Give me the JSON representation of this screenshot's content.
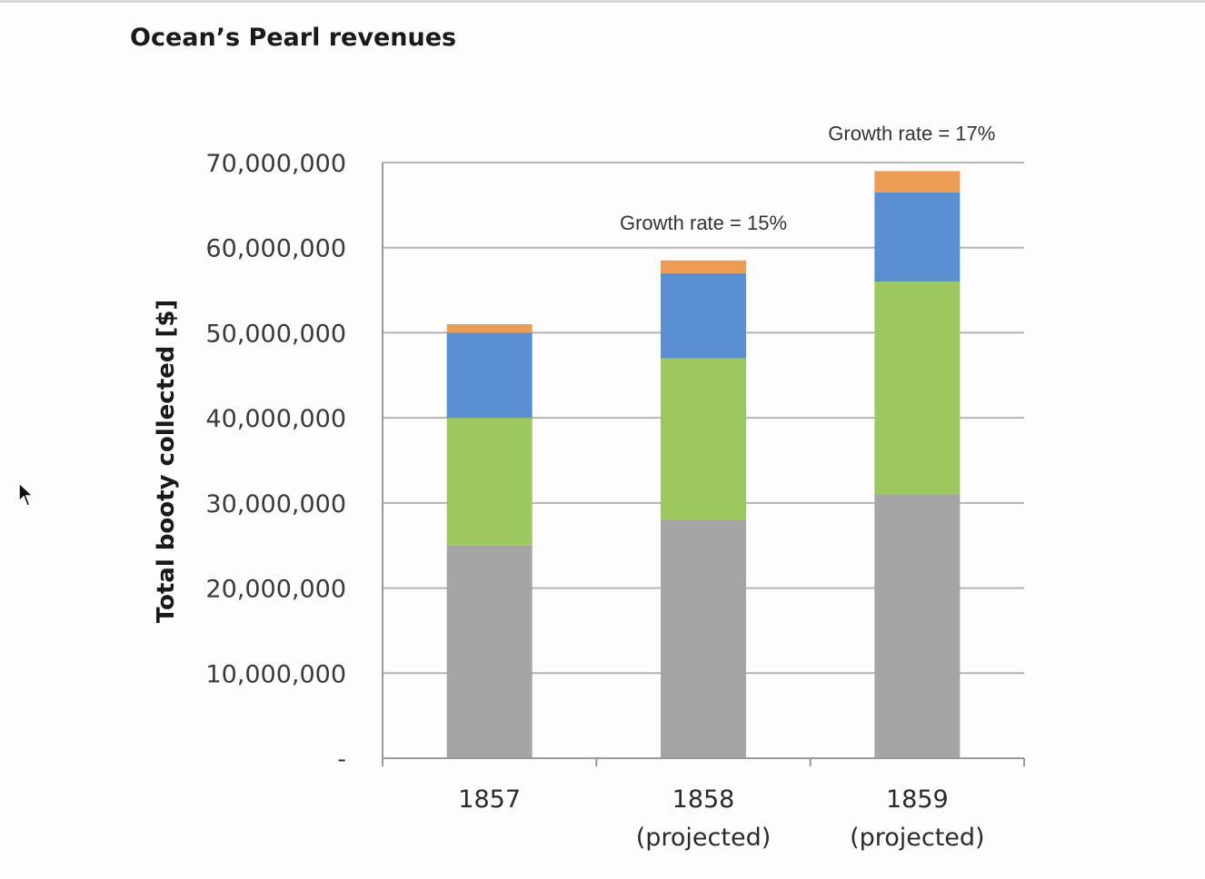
{
  "page": {
    "title": "Ocean’s Pearl revenues"
  },
  "cursor": {
    "icon": "mouse-pointer-icon"
  },
  "chart_data": {
    "type": "bar",
    "stacked": true,
    "title": "",
    "ylabel": "Total booty collected [$]",
    "xlabel": "",
    "ylim": [
      0,
      70000000
    ],
    "yticks": [
      0,
      10000000,
      20000000,
      30000000,
      40000000,
      50000000,
      60000000,
      70000000
    ],
    "ytick_labels": [
      "-",
      "10,000,000",
      "20,000,000",
      "30,000,000",
      "40,000,000",
      "50,000,000",
      "60,000,000",
      "70,000,000"
    ],
    "grid": true,
    "legend": "none",
    "categories": [
      {
        "line1": "1857",
        "line2": ""
      },
      {
        "line1": "1858",
        "line2": "(projected)"
      },
      {
        "line1": "1859",
        "line2": "(projected)"
      }
    ],
    "series": [
      {
        "color": "#a5a5a5",
        "values": [
          25000000,
          28000000,
          31000000
        ]
      },
      {
        "color": "#9dc85f",
        "values": [
          15000000,
          19000000,
          25000000
        ]
      },
      {
        "color": "#5b8fd4",
        "values": [
          10000000,
          10000000,
          10500000
        ]
      },
      {
        "color": "#ed9c55",
        "values": [
          1000000,
          1500000,
          2500000
        ]
      }
    ],
    "annotations": [
      {
        "category_index": 1,
        "text": "Growth rate = 15%"
      },
      {
        "category_index": 2,
        "text": "Growth rate = 17%"
      }
    ],
    "colors": {
      "grid": "#b4b4b4",
      "axis": "#9a9a9a"
    }
  }
}
